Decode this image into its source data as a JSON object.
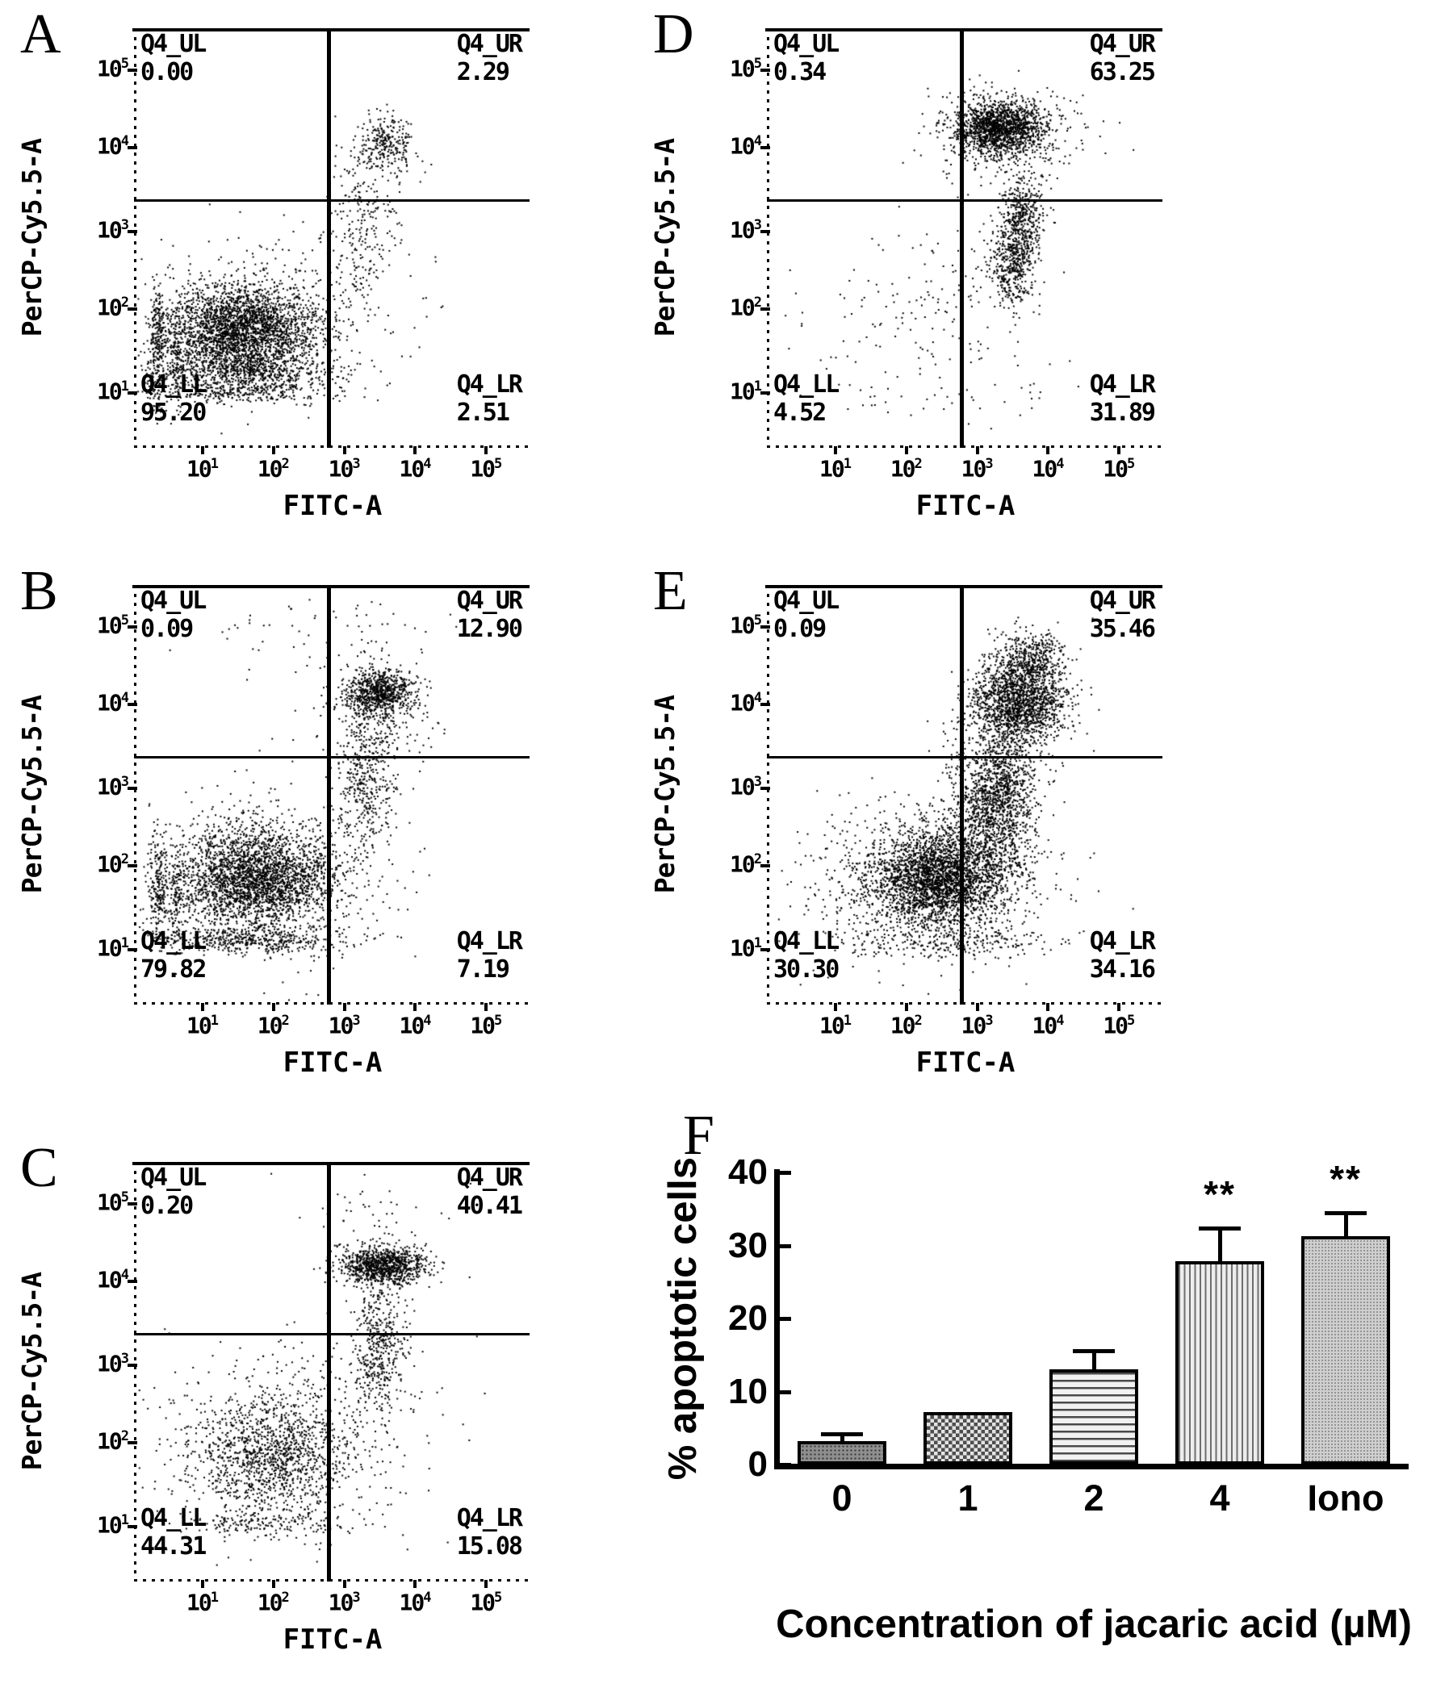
{
  "scatter_panels": [
    {
      "letter": "A",
      "quadrants": {
        "ul": {
          "label": "Q4_UL",
          "value": "0.00"
        },
        "ur": {
          "label": "Q4_UR",
          "value": "2.29"
        },
        "ll": {
          "label": "Q4_LL",
          "value": "95.20"
        },
        "lr": {
          "label": "Q4_LR",
          "value": "2.51"
        }
      },
      "x_axis": {
        "title": "FITC-A",
        "tick_exponents": [
          1,
          2,
          3,
          4,
          5
        ]
      },
      "y_axis": {
        "title": "PerCP-Cy5.5-A",
        "tick_exponents": [
          5,
          4,
          3,
          2,
          1
        ]
      },
      "clusters": [
        [
          0.27,
          0.72,
          0.095,
          0.055,
          2800
        ],
        [
          0.27,
          0.82,
          0.12,
          0.02,
          520
        ],
        [
          0.25,
          0.865,
          0.13,
          0.013,
          300
        ],
        [
          0.055,
          0.75,
          0.012,
          0.07,
          250
        ],
        [
          0.1,
          0.78,
          0.008,
          0.06,
          120
        ],
        [
          0.35,
          0.68,
          0.17,
          0.1,
          320
        ],
        [
          0.63,
          0.27,
          0.035,
          0.035,
          270
        ],
        [
          0.57,
          0.5,
          0.045,
          0.09,
          190
        ],
        [
          0.6,
          0.38,
          0.05,
          0.05,
          60
        ]
      ]
    },
    {
      "letter": "B",
      "quadrants": {
        "ul": {
          "label": "Q4_UL",
          "value": "0.09"
        },
        "ur": {
          "label": "Q4_UR",
          "value": "12.90"
        },
        "ll": {
          "label": "Q4_LL",
          "value": "79.82"
        },
        "lr": {
          "label": "Q4_LR",
          "value": "7.19"
        }
      },
      "x_axis": {
        "title": "FITC-A",
        "tick_exponents": [
          1,
          2,
          3,
          4,
          5
        ]
      },
      "y_axis": {
        "title": "PerCP-Cy5.5-A",
        "tick_exponents": [
          5,
          4,
          3,
          2,
          1
        ]
      },
      "clusters": [
        [
          0.3,
          0.7,
          0.1,
          0.06,
          2600
        ],
        [
          0.33,
          0.68,
          0.165,
          0.095,
          430
        ],
        [
          0.28,
          0.845,
          0.13,
          0.016,
          440
        ],
        [
          0.055,
          0.72,
          0.012,
          0.07,
          210
        ],
        [
          0.1,
          0.76,
          0.008,
          0.06,
          110
        ],
        [
          0.615,
          0.255,
          0.045,
          0.028,
          800
        ],
        [
          0.585,
          0.47,
          0.035,
          0.09,
          410
        ],
        [
          0.6,
          0.33,
          0.08,
          0.06,
          170
        ],
        [
          0.5,
          0.12,
          0.17,
          0.05,
          70
        ]
      ]
    },
    {
      "letter": "C",
      "quadrants": {
        "ul": {
          "label": "Q4_UL",
          "value": "0.20"
        },
        "ur": {
          "label": "Q4_UR",
          "value": "40.41"
        },
        "ll": {
          "label": "Q4_LL",
          "value": "44.31"
        },
        "lr": {
          "label": "Q4_LR",
          "value": "15.08"
        }
      },
      "x_axis": {
        "title": "FITC-A",
        "tick_exponents": [
          1,
          2,
          3,
          4,
          5
        ]
      },
      "y_axis": {
        "title": "PerCP-Cy5.5-A",
        "tick_exponents": [
          5,
          4,
          3,
          2,
          1
        ]
      },
      "clusters": [
        [
          0.34,
          0.7,
          0.1,
          0.075,
          1150
        ],
        [
          0.36,
          0.68,
          0.16,
          0.11,
          320
        ],
        [
          0.625,
          0.245,
          0.055,
          0.022,
          980
        ],
        [
          0.615,
          0.43,
          0.035,
          0.08,
          440
        ],
        [
          0.52,
          0.58,
          0.13,
          0.1,
          170
        ],
        [
          0.3,
          0.86,
          0.12,
          0.014,
          150
        ],
        [
          0.6,
          0.12,
          0.1,
          0.04,
          40
        ]
      ]
    },
    {
      "letter": "D",
      "quadrants": {
        "ul": {
          "label": "Q4_UL",
          "value": "0.34"
        },
        "ur": {
          "label": "Q4_UR",
          "value": "63.25"
        },
        "ll": {
          "label": "Q4_LL",
          "value": "4.52"
        },
        "lr": {
          "label": "Q4_LR",
          "value": "31.89"
        }
      },
      "x_axis": {
        "title": "FITC-A",
        "tick_exponents": [
          1,
          2,
          3,
          4,
          5
        ]
      },
      "y_axis": {
        "title": "PerCP-Cy5.5-A",
        "tick_exponents": [
          5,
          4,
          3,
          2,
          1
        ]
      },
      "clusters": [
        [
          0.585,
          0.235,
          0.055,
          0.033,
          1550
        ],
        [
          0.6,
          0.25,
          0.1,
          0.06,
          270
        ],
        [
          0.615,
          0.56,
          0.027,
          0.05,
          430
        ],
        [
          0.645,
          0.455,
          0.027,
          0.05,
          430
        ],
        [
          0.33,
          0.7,
          0.15,
          0.1,
          100
        ],
        [
          0.5,
          0.62,
          0.1,
          0.1,
          60
        ],
        [
          0.55,
          0.88,
          0.18,
          0.03,
          40
        ]
      ]
    },
    {
      "letter": "E",
      "quadrants": {
        "ul": {
          "label": "Q4_UL",
          "value": "0.09"
        },
        "ur": {
          "label": "Q4_UR",
          "value": "35.46"
        },
        "ll": {
          "label": "Q4_LL",
          "value": "30.30"
        },
        "lr": {
          "label": "Q4_LR",
          "value": "34.16"
        }
      },
      "x_axis": {
        "title": "FITC-A",
        "tick_exponents": [
          1,
          2,
          3,
          4,
          5
        ]
      },
      "y_axis": {
        "title": "PerCP-Cy5.5-A",
        "tick_exponents": [
          5,
          4,
          3,
          2,
          1
        ]
      },
      "clusters": [
        [
          0.43,
          0.7,
          0.085,
          0.055,
          2600
        ],
        [
          0.42,
          0.68,
          0.15,
          0.1,
          520
        ],
        [
          0.58,
          0.5,
          0.05,
          0.09,
          1300
        ],
        [
          0.635,
          0.28,
          0.06,
          0.05,
          1650
        ],
        [
          0.66,
          0.17,
          0.045,
          0.035,
          420
        ],
        [
          0.45,
          0.85,
          0.15,
          0.02,
          240
        ],
        [
          0.22,
          0.72,
          0.08,
          0.08,
          150
        ],
        [
          0.52,
          0.6,
          0.09,
          0.09,
          300
        ]
      ]
    }
  ],
  "chart_data": [
    {
      "type": "bar",
      "panel": "F",
      "categories": [
        "0",
        "1",
        "2",
        "4",
        "Iono"
      ],
      "values": [
        3.2,
        7.2,
        13.0,
        27.8,
        31.3
      ],
      "errors_upper": [
        0.7,
        0,
        2.2,
        4.2,
        2.9
      ],
      "significance": [
        "",
        "",
        "",
        "**",
        "**"
      ],
      "xlabel": "Concentration of jacaric acid (µM)",
      "ylabel": "% apoptotic cells",
      "ylim": [
        0,
        40
      ],
      "yticks": [
        0,
        10,
        20,
        30,
        40
      ],
      "grid": false,
      "legend": "none"
    },
    {
      "type": "scatter",
      "panel": "A",
      "subtype": "flow-cytometry-quadrants",
      "xlabel": "FITC-A",
      "ylabel": "PerCP-Cy5.5-A",
      "x_range_log10": [
        1,
        5
      ],
      "y_range_log10": [
        1,
        5
      ],
      "quadrant_percentages": {
        "Q4_UL": 0.0,
        "Q4_UR": 2.29,
        "Q4_LL": 95.2,
        "Q4_LR": 2.51
      }
    },
    {
      "type": "scatter",
      "panel": "B",
      "subtype": "flow-cytometry-quadrants",
      "xlabel": "FITC-A",
      "ylabel": "PerCP-Cy5.5-A",
      "x_range_log10": [
        1,
        5
      ],
      "y_range_log10": [
        1,
        5
      ],
      "quadrant_percentages": {
        "Q4_UL": 0.09,
        "Q4_UR": 12.9,
        "Q4_LL": 79.82,
        "Q4_LR": 7.19
      }
    },
    {
      "type": "scatter",
      "panel": "C",
      "subtype": "flow-cytometry-quadrants",
      "xlabel": "FITC-A",
      "ylabel": "PerCP-Cy5.5-A",
      "x_range_log10": [
        1,
        5
      ],
      "y_range_log10": [
        1,
        5
      ],
      "quadrant_percentages": {
        "Q4_UL": 0.2,
        "Q4_UR": 40.41,
        "Q4_LL": 44.31,
        "Q4_LR": 15.08
      }
    },
    {
      "type": "scatter",
      "panel": "D",
      "subtype": "flow-cytometry-quadrants",
      "xlabel": "FITC-A",
      "ylabel": "PerCP-Cy5.5-A",
      "x_range_log10": [
        1,
        5
      ],
      "y_range_log10": [
        1,
        5
      ],
      "quadrant_percentages": {
        "Q4_UL": 0.34,
        "Q4_UR": 63.25,
        "Q4_LL": 4.52,
        "Q4_LR": 31.89
      }
    },
    {
      "type": "scatter",
      "panel": "E",
      "subtype": "flow-cytometry-quadrants",
      "xlabel": "FITC-A",
      "ylabel": "PerCP-Cy5.5-A",
      "x_range_log10": [
        1,
        5
      ],
      "y_range_log10": [
        1,
        5
      ],
      "quadrant_percentages": {
        "Q4_UL": 0.09,
        "Q4_UR": 35.46,
        "Q4_LL": 30.3,
        "Q4_LR": 34.16
      }
    }
  ]
}
